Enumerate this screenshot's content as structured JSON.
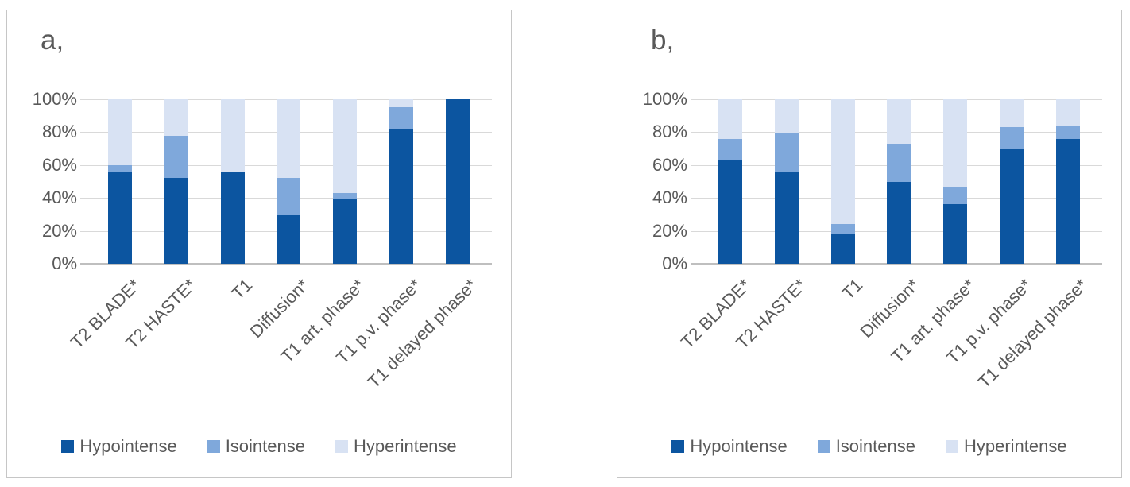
{
  "chart_data": [
    {
      "type": "bar",
      "stacked": true,
      "orientation": "vertical",
      "title": "a,",
      "categories": [
        "T2 BLADE*",
        "T2 HASTE*",
        "T1",
        "Diffusion*",
        "T1 art. phase*",
        "T1 p.v. phase*",
        "T1 delayed phase*"
      ],
      "series": [
        {
          "name": "Hypointense",
          "color": "#0c55a0",
          "values": [
            56,
            52,
            56,
            30,
            39,
            82,
            100
          ]
        },
        {
          "name": "Isointense",
          "color": "#7fa8db",
          "values": [
            4,
            26,
            0,
            22,
            4,
            13,
            0
          ]
        },
        {
          "name": "Hyperintense",
          "color": "#d8e2f3",
          "values": [
            40,
            22,
            44,
            48,
            57,
            5,
            0
          ]
        }
      ],
      "ylim": [
        0,
        100
      ],
      "y_tick_labels": [
        "0%",
        "20%",
        "40%",
        "60%",
        "80%",
        "100%"
      ],
      "grid": true,
      "legend_position": "bottom"
    },
    {
      "type": "bar",
      "stacked": true,
      "orientation": "vertical",
      "title": "b,",
      "categories": [
        "T2 BLADE*",
        "T2 HASTE*",
        "T1",
        "Diffusion*",
        "T1 art. phase*",
        "T1 p.v. phase*",
        "T1 delayed phase*"
      ],
      "series": [
        {
          "name": "Hypointense",
          "color": "#0c55a0",
          "values": [
            63,
            56,
            18,
            50,
            36,
            70,
            76
          ]
        },
        {
          "name": "Isointense",
          "color": "#7fa8db",
          "values": [
            13,
            23,
            6,
            23,
            11,
            13,
            8
          ]
        },
        {
          "name": "Hyperintense",
          "color": "#d8e2f3",
          "values": [
            24,
            21,
            76,
            27,
            53,
            17,
            16
          ]
        }
      ],
      "ylim": [
        0,
        100
      ],
      "y_tick_labels": [
        "0%",
        "20%",
        "40%",
        "60%",
        "80%",
        "100%"
      ],
      "grid": true,
      "legend_position": "bottom"
    }
  ],
  "colors": {
    "gridline": "#d9d9d9",
    "axis_line": "#bfbfbf",
    "text": "#595959",
    "panel_border": "#c6c6c6"
  }
}
